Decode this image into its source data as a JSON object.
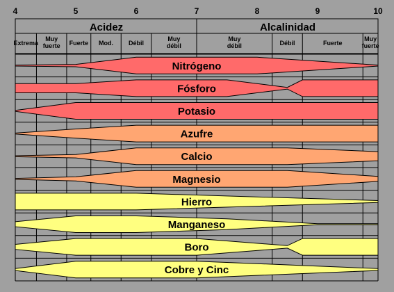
{
  "scale": {
    "ph_ticks": [
      "4",
      "5",
      "6",
      "7",
      "8",
      "9",
      "10"
    ],
    "acid_label": "Acidez",
    "alkaline_label": "Alcalinidad",
    "categories": [
      {
        "label": "Extrema",
        "from": 4.0,
        "to": 4.35
      },
      {
        "label": "Muy fuerte",
        "from": 4.35,
        "to": 4.85
      },
      {
        "label": "Fuerte",
        "from": 4.85,
        "to": 5.25
      },
      {
        "label": "Mod.",
        "from": 5.25,
        "to": 5.75
      },
      {
        "label": "Débil",
        "from": 5.75,
        "to": 6.25
      },
      {
        "label": "Muy débil",
        "from": 6.25,
        "to": 7.0
      },
      {
        "label": "Muy débil",
        "from": 7.0,
        "to": 8.25
      },
      {
        "label": "Débil",
        "from": 8.25,
        "to": 8.75
      },
      {
        "label": "Fuerte",
        "from": 8.75,
        "to": 9.75
      },
      {
        "label": "Muy fuerte",
        "from": 9.75,
        "to": 10.0
      }
    ]
  },
  "nutrients": [
    {
      "name": "Nitrógeno",
      "color": "#ff6a6a",
      "profile": [
        [
          4.0,
          0.06
        ],
        [
          5.0,
          0.14
        ],
        [
          6.0,
          1.0
        ],
        [
          8.0,
          1.0
        ],
        [
          10.0,
          0.06
        ]
      ]
    },
    {
      "name": "Fósforo",
      "color": "#ff6a6a",
      "profile": [
        [
          4.0,
          0.55
        ],
        [
          5.0,
          0.55
        ],
        [
          6.0,
          1.0
        ],
        [
          7.5,
          1.0
        ],
        [
          8.5,
          0.1
        ],
        [
          8.75,
          1.0
        ],
        [
          10.0,
          1.0
        ]
      ]
    },
    {
      "name": "Potasio",
      "color": "#ff6a6a",
      "profile": [
        [
          4.0,
          0.06
        ],
        [
          5.0,
          1.0
        ],
        [
          10.0,
          1.0
        ]
      ]
    },
    {
      "name": "Azufre",
      "color": "#ffa672",
      "profile": [
        [
          4.0,
          0.06
        ],
        [
          5.0,
          0.55
        ],
        [
          6.0,
          1.0
        ],
        [
          10.0,
          1.0
        ]
      ]
    },
    {
      "name": "Calcio",
      "color": "#ffa672",
      "profile": [
        [
          4.0,
          0.06
        ],
        [
          5.0,
          0.2
        ],
        [
          6.0,
          1.0
        ],
        [
          8.5,
          1.0
        ],
        [
          10.0,
          0.55
        ]
      ]
    },
    {
      "name": "Magnesio",
      "color": "#ffa672",
      "profile": [
        [
          4.0,
          0.06
        ],
        [
          5.0,
          0.25
        ],
        [
          6.0,
          1.0
        ],
        [
          8.5,
          1.0
        ],
        [
          10.0,
          0.3
        ]
      ]
    },
    {
      "name": "Hierro",
      "color": "#ffff80",
      "profile": [
        [
          4.0,
          1.0
        ],
        [
          6.0,
          1.0
        ],
        [
          10.0,
          0.12
        ]
      ]
    },
    {
      "name": "Manganeso",
      "color": "#ffff80",
      "profile": [
        [
          4.0,
          0.3
        ],
        [
          5.0,
          1.0
        ],
        [
          6.0,
          1.0
        ],
        [
          7.5,
          0.65
        ],
        [
          9.0,
          0.06
        ],
        [
          10.0,
          0.06
        ]
      ]
    },
    {
      "name": "Boro",
      "color": "#ffff80",
      "profile": [
        [
          4.0,
          0.3
        ],
        [
          5.0,
          1.0
        ],
        [
          7.0,
          1.0
        ],
        [
          8.5,
          0.15
        ],
        [
          8.75,
          1.0
        ],
        [
          10.0,
          1.0
        ]
      ]
    },
    {
      "name": "Cobre y Cinc",
      "color": "#ffff80",
      "profile": [
        [
          4.0,
          0.12
        ],
        [
          5.0,
          1.0
        ],
        [
          7.0,
          1.0
        ],
        [
          10.0,
          0.12
        ]
      ]
    }
  ]
}
